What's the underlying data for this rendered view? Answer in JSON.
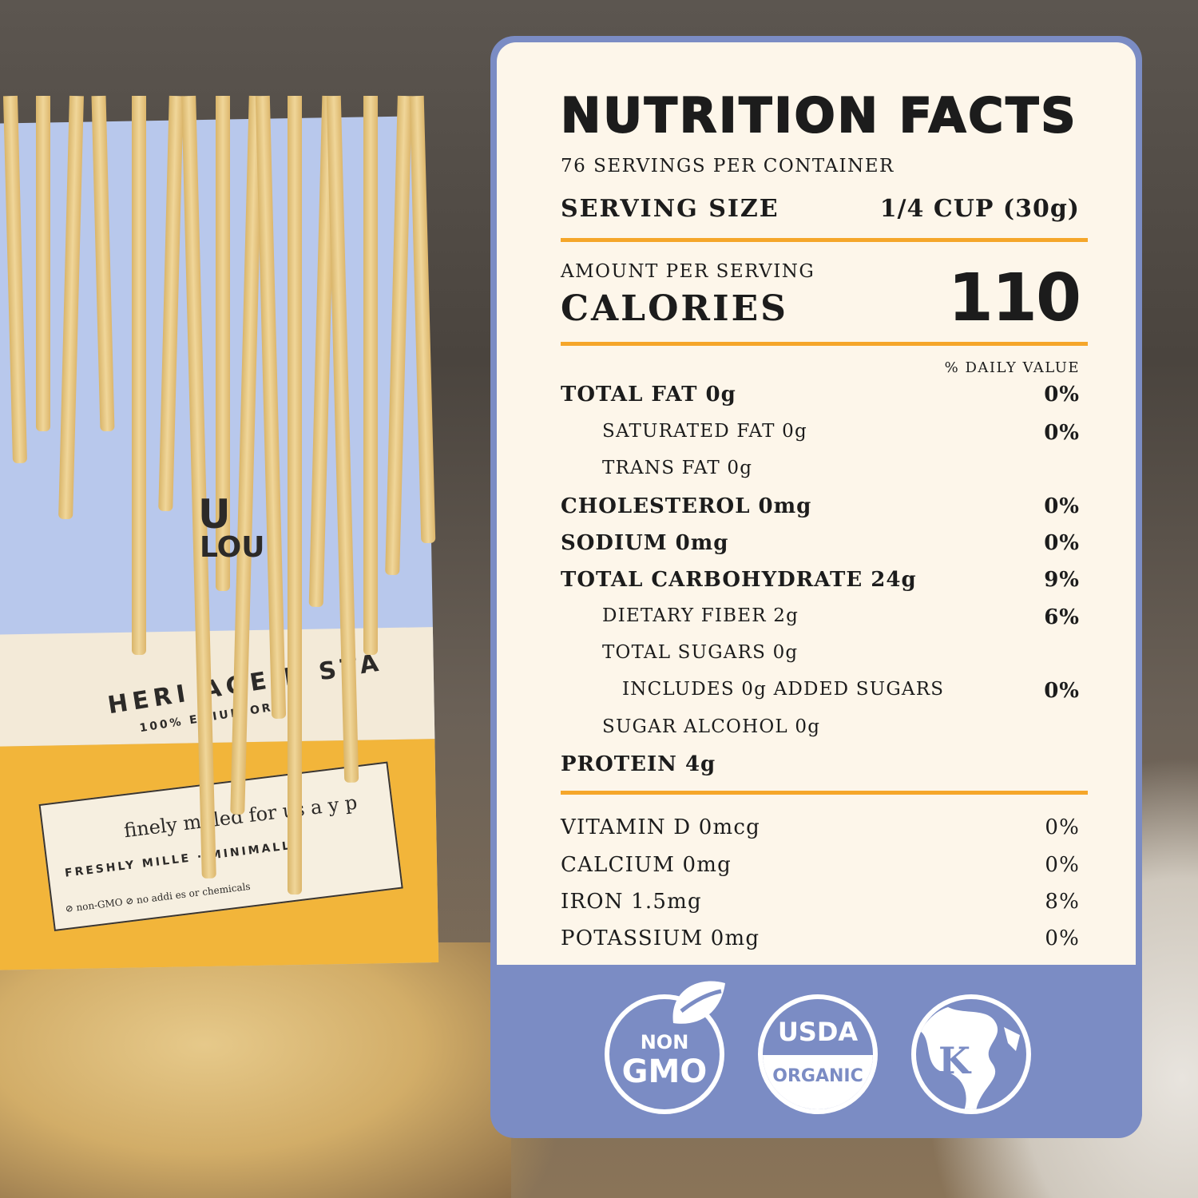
{
  "background": {
    "bag_text": {
      "brand_partial": [
        "U",
        "LOU"
      ],
      "heritage": "HERI AGE P STA",
      "premium": "100%   EMIUM ORG",
      "finely": "finely milled for us   a y p",
      "freshly": "FRESHLY MILLE  · MINIMALLY",
      "non_gmo": "⊘ non-GMO  ⊘ no addi  es or chemicals"
    },
    "colors": {
      "bag_blue": "#b8c8ec",
      "bag_yellow": "#f2b53a",
      "noodle": "#f0d699"
    }
  },
  "nutrition": {
    "title": "NUTRITION FACTS",
    "servings_per_container": "76 SERVINGS PER CONTAINER",
    "serving_size_label": "SERVING SIZE",
    "serving_size_value": "1/4 CUP (30g)",
    "amount_per_serving": "AMOUNT PER SERVING",
    "calories_label": "CALORIES",
    "calories_value": "110",
    "daily_value_header": "% DAILY VALUE",
    "rows": [
      {
        "label": "TOTAL FAT 0g",
        "dv": "0%"
      },
      {
        "label": "SATURATED FAT 0g",
        "dv": "0%"
      },
      {
        "label": "TRANS FAT 0g",
        "dv": ""
      },
      {
        "label": "CHOLESTEROL 0mg",
        "dv": "0%"
      },
      {
        "label": "SODIUM 0mg",
        "dv": "0%"
      },
      {
        "label": "TOTAL CARBOHYDRATE 24g",
        "dv": "9%"
      },
      {
        "label": "DIETARY FIBER 2g",
        "dv": "6%"
      },
      {
        "label": "TOTAL SUGARS 0g",
        "dv": ""
      },
      {
        "label": "INCLUDES 0g ADDED SUGARS",
        "dv": "0%"
      },
      {
        "label": "SUGAR ALCOHOL 0g",
        "dv": ""
      },
      {
        "label": "PROTEIN 4g",
        "dv": ""
      }
    ],
    "vitamins": [
      {
        "label": "VITAMIN D 0mcg",
        "dv": "0%"
      },
      {
        "label": "CALCIUM 0mg",
        "dv": "0%"
      },
      {
        "label": "IRON 1.5mg",
        "dv": "8%"
      },
      {
        "label": "POTASSIUM 0mg",
        "dv": "0%"
      }
    ],
    "colors": {
      "panel": "#7b8cc4",
      "card": "#fdf6ea",
      "rule": "#f5a62a"
    }
  },
  "badges": {
    "non_gmo": {
      "top": "NON",
      "bottom": "GMO",
      "icon": "leaf-icon"
    },
    "usda": {
      "top": "USDA",
      "bottom": "ORGANIC"
    },
    "kosher": {
      "letter": "K",
      "icon": "globe-icon"
    }
  }
}
